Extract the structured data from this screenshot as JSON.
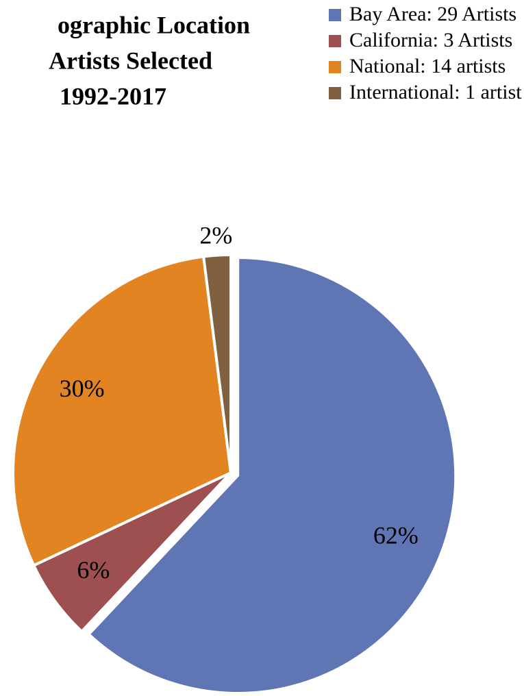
{
  "chart_data": {
    "type": "pie",
    "title": [
      "ographic Location",
      "Artists Selected",
      "1992-2017"
    ],
    "categories": [
      "Bay Area: 29 Artists",
      "California: 3 Artists",
      "National: 14 artists",
      "International: 1 artist"
    ],
    "values": [
      62,
      6,
      30,
      2
    ],
    "value_labels": [
      "62%",
      "6%",
      "30%",
      "2%"
    ],
    "colors": [
      "#6076b4",
      "#9e4f4f",
      "#e38422",
      "#7f6142"
    ],
    "legend": "top-right"
  }
}
